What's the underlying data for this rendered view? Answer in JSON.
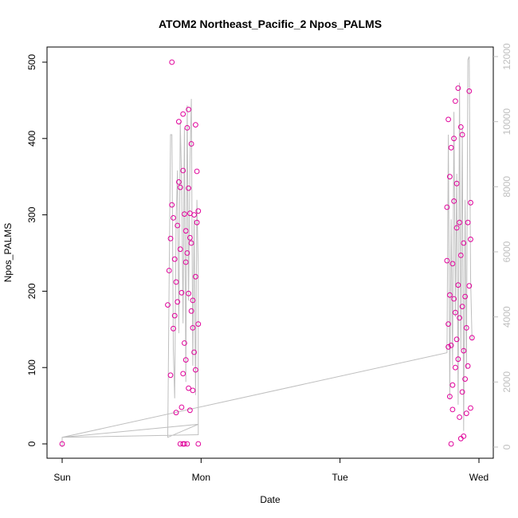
{
  "chart_data": {
    "type": "scatter",
    "title": "ATOM2 Northeast_Pacific_2 Npos_PALMS",
    "xlabel": "Date",
    "ylabel": "Npos_PALMS",
    "x_ticks": [
      "Sun",
      "Mon",
      "Tue",
      "Wed"
    ],
    "x_domain_days": [
      0,
      3.05
    ],
    "ylim_left": [
      0,
      500
    ],
    "y_ticks_left": [
      "0",
      "100",
      "200",
      "300",
      "400",
      "500"
    ],
    "ylim_right": [
      0,
      12000
    ],
    "y_ticks_right": [
      "0",
      "2000",
      "4000",
      "6000",
      "8000",
      "10000",
      "12000"
    ],
    "grid": false,
    "colors": {
      "points": "#e0009a",
      "line": "#bfbfbf",
      "axis": "#000000",
      "right_axis": "#bfbfbf"
    },
    "points": [
      {
        "x": 0.0,
        "y": 0
      },
      {
        "x": 0.76,
        "y": 182
      },
      {
        "x": 0.77,
        "y": 227
      },
      {
        "x": 0.78,
        "y": 269
      },
      {
        "x": 0.78,
        "y": 90
      },
      {
        "x": 0.79,
        "y": 500
      },
      {
        "x": 0.79,
        "y": 313
      },
      {
        "x": 0.8,
        "y": 296
      },
      {
        "x": 0.8,
        "y": 151
      },
      {
        "x": 0.81,
        "y": 242
      },
      {
        "x": 0.81,
        "y": 168
      },
      {
        "x": 0.82,
        "y": 41
      },
      {
        "x": 0.82,
        "y": 212
      },
      {
        "x": 0.83,
        "y": 186
      },
      {
        "x": 0.83,
        "y": 286
      },
      {
        "x": 0.84,
        "y": 343
      },
      {
        "x": 0.84,
        "y": 422
      },
      {
        "x": 0.85,
        "y": 336
      },
      {
        "x": 0.85,
        "y": 255
      },
      {
        "x": 0.85,
        "y": 0
      },
      {
        "x": 0.86,
        "y": 48
      },
      {
        "x": 0.86,
        "y": 198
      },
      {
        "x": 0.87,
        "y": 358
      },
      {
        "x": 0.87,
        "y": 432
      },
      {
        "x": 0.87,
        "y": 92
      },
      {
        "x": 0.87,
        "y": 0
      },
      {
        "x": 0.88,
        "y": 301
      },
      {
        "x": 0.88,
        "y": 0
      },
      {
        "x": 0.88,
        "y": 132
      },
      {
        "x": 0.89,
        "y": 279
      },
      {
        "x": 0.89,
        "y": 238
      },
      {
        "x": 0.89,
        "y": 110
      },
      {
        "x": 0.9,
        "y": 250
      },
      {
        "x": 0.9,
        "y": 414
      },
      {
        "x": 0.9,
        "y": 0
      },
      {
        "x": 0.91,
        "y": 438
      },
      {
        "x": 0.91,
        "y": 335
      },
      {
        "x": 0.91,
        "y": 197
      },
      {
        "x": 0.91,
        "y": 73
      },
      {
        "x": 0.92,
        "y": 302
      },
      {
        "x": 0.92,
        "y": 270
      },
      {
        "x": 0.92,
        "y": 44
      },
      {
        "x": 0.93,
        "y": 393
      },
      {
        "x": 0.93,
        "y": 263
      },
      {
        "x": 0.93,
        "y": 174
      },
      {
        "x": 0.94,
        "y": 152
      },
      {
        "x": 0.94,
        "y": 188
      },
      {
        "x": 0.94,
        "y": 70
      },
      {
        "x": 0.95,
        "y": 300
      },
      {
        "x": 0.95,
        "y": 120
      },
      {
        "x": 0.96,
        "y": 418
      },
      {
        "x": 0.96,
        "y": 219
      },
      {
        "x": 0.96,
        "y": 97
      },
      {
        "x": 0.97,
        "y": 290
      },
      {
        "x": 0.97,
        "y": 357
      },
      {
        "x": 0.98,
        "y": 305
      },
      {
        "x": 0.98,
        "y": 157
      },
      {
        "x": 0.98,
        "y": 0
      },
      {
        "x": 2.77,
        "y": 240
      },
      {
        "x": 2.77,
        "y": 310
      },
      {
        "x": 2.78,
        "y": 157
      },
      {
        "x": 2.78,
        "y": 425
      },
      {
        "x": 2.78,
        "y": 127
      },
      {
        "x": 2.79,
        "y": 62
      },
      {
        "x": 2.79,
        "y": 350
      },
      {
        "x": 2.79,
        "y": 195
      },
      {
        "x": 2.8,
        "y": 388
      },
      {
        "x": 2.8,
        "y": 129
      },
      {
        "x": 2.8,
        "y": 0
      },
      {
        "x": 2.81,
        "y": 77
      },
      {
        "x": 2.81,
        "y": 236
      },
      {
        "x": 2.81,
        "y": 45
      },
      {
        "x": 2.82,
        "y": 400
      },
      {
        "x": 2.82,
        "y": 190
      },
      {
        "x": 2.82,
        "y": 318
      },
      {
        "x": 2.83,
        "y": 449
      },
      {
        "x": 2.83,
        "y": 172
      },
      {
        "x": 2.83,
        "y": 100
      },
      {
        "x": 2.84,
        "y": 341
      },
      {
        "x": 2.84,
        "y": 283
      },
      {
        "x": 2.84,
        "y": 137
      },
      {
        "x": 2.85,
        "y": 466
      },
      {
        "x": 2.85,
        "y": 208
      },
      {
        "x": 2.85,
        "y": 111
      },
      {
        "x": 2.86,
        "y": 290
      },
      {
        "x": 2.86,
        "y": 165
      },
      {
        "x": 2.86,
        "y": 35
      },
      {
        "x": 2.87,
        "y": 415
      },
      {
        "x": 2.87,
        "y": 247
      },
      {
        "x": 2.87,
        "y": 7
      },
      {
        "x": 2.88,
        "y": 405
      },
      {
        "x": 2.88,
        "y": 180
      },
      {
        "x": 2.88,
        "y": 68
      },
      {
        "x": 2.89,
        "y": 263
      },
      {
        "x": 2.89,
        "y": 122
      },
      {
        "x": 2.89,
        "y": 10
      },
      {
        "x": 2.9,
        "y": 193
      },
      {
        "x": 2.9,
        "y": 85
      },
      {
        "x": 2.91,
        "y": 152
      },
      {
        "x": 2.91,
        "y": 40
      },
      {
        "x": 2.92,
        "y": 290
      },
      {
        "x": 2.92,
        "y": 102
      },
      {
        "x": 2.93,
        "y": 207
      },
      {
        "x": 2.93,
        "y": 462
      },
      {
        "x": 2.94,
        "y": 316
      },
      {
        "x": 2.94,
        "y": 268
      },
      {
        "x": 2.94,
        "y": 47
      },
      {
        "x": 2.95,
        "y": 139
      }
    ],
    "line_series": {
      "axis": "right",
      "points": [
        {
          "x": 0.0,
          "y": 0
        },
        {
          "x": 0.0,
          "y": 300
        },
        {
          "x": 0.98,
          "y": 380
        },
        {
          "x": 0.98,
          "y": 700
        },
        {
          "x": 0.76,
          "y": 300
        },
        {
          "x": 0.77,
          "y": 5000
        },
        {
          "x": 0.78,
          "y": 9600
        },
        {
          "x": 0.79,
          "y": 9600
        },
        {
          "x": 0.8,
          "y": 3000
        },
        {
          "x": 0.81,
          "y": 1500
        },
        {
          "x": 0.82,
          "y": 7000
        },
        {
          "x": 0.83,
          "y": 8500
        },
        {
          "x": 0.84,
          "y": 3500
        },
        {
          "x": 0.85,
          "y": 10000
        },
        {
          "x": 0.86,
          "y": 8200
        },
        {
          "x": 0.87,
          "y": 3800
        },
        {
          "x": 0.88,
          "y": 9800
        },
        {
          "x": 0.89,
          "y": 2000
        },
        {
          "x": 0.9,
          "y": 10500
        },
        {
          "x": 0.91,
          "y": 4500
        },
        {
          "x": 0.92,
          "y": 8800
        },
        {
          "x": 0.93,
          "y": 10700
        },
        {
          "x": 0.94,
          "y": 2500
        },
        {
          "x": 0.95,
          "y": 7000
        },
        {
          "x": 0.96,
          "y": 1600
        },
        {
          "x": 0.97,
          "y": 7600
        },
        {
          "x": 0.98,
          "y": 5500
        },
        {
          "x": 0.98,
          "y": 700
        },
        {
          "x": 0.0,
          "y": 300
        },
        {
          "x": 2.77,
          "y": 2900
        },
        {
          "x": 2.78,
          "y": 9600
        },
        {
          "x": 2.79,
          "y": 1500
        },
        {
          "x": 2.8,
          "y": 7000
        },
        {
          "x": 2.81,
          "y": 2500
        },
        {
          "x": 2.82,
          "y": 10300
        },
        {
          "x": 2.83,
          "y": 4000
        },
        {
          "x": 2.84,
          "y": 8400
        },
        {
          "x": 2.85,
          "y": 1300
        },
        {
          "x": 2.86,
          "y": 11200
        },
        {
          "x": 2.87,
          "y": 3000
        },
        {
          "x": 2.88,
          "y": 9800
        },
        {
          "x": 2.89,
          "y": 500
        },
        {
          "x": 2.9,
          "y": 7600
        },
        {
          "x": 2.91,
          "y": 2400
        },
        {
          "x": 2.92,
          "y": 11900
        },
        {
          "x": 2.93,
          "y": 12000
        },
        {
          "x": 2.94,
          "y": 5200
        },
        {
          "x": 2.95,
          "y": 3300
        }
      ]
    }
  }
}
